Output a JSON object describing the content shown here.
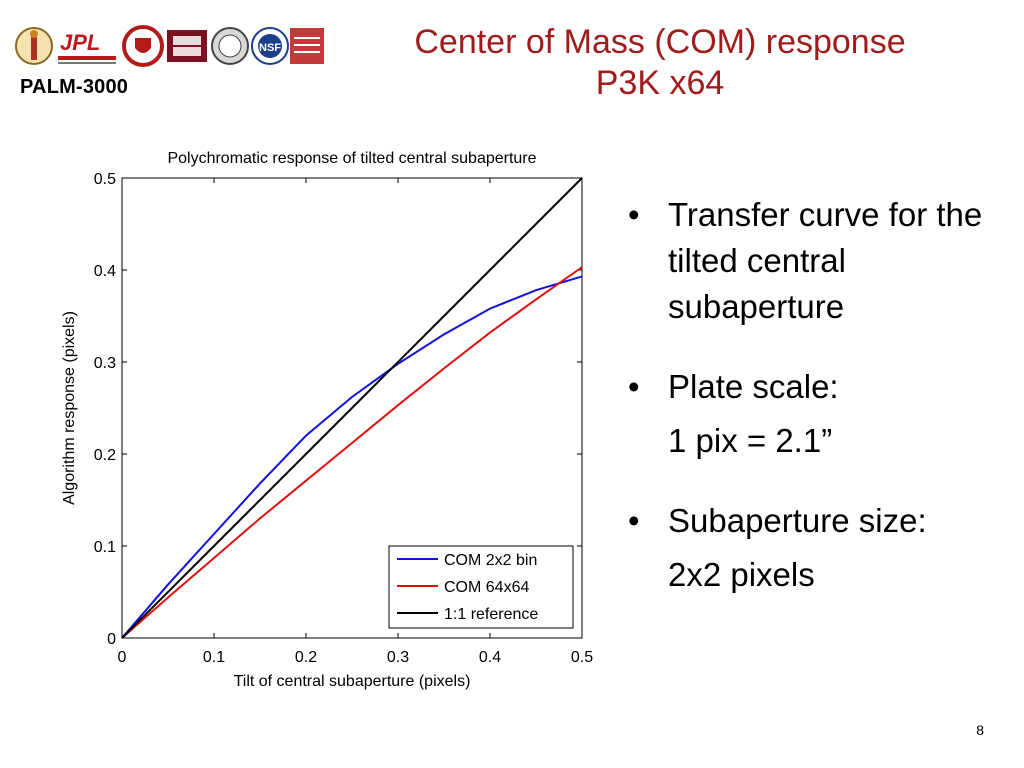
{
  "header": {
    "title_line1": "Center of Mass (COM) response",
    "title_line2": "P3K x64",
    "project_label": "PALM-3000",
    "logos": [
      "caltech-seal-logo",
      "jpl-logo",
      "cornell-seal-logo",
      "university-seal-logo",
      "oxford-seal-logo",
      "nsf-logo",
      "amnh-logo",
      "flag-logo"
    ]
  },
  "bullets": [
    {
      "text": "Transfer curve for the tilted central subaperture",
      "sub": ""
    },
    {
      "text": "Plate scale:",
      "sub": "1 pix = 2.1”"
    },
    {
      "text": "Subaperture size:",
      "sub": "2x2 pixels"
    }
  ],
  "page_number": "8",
  "colors": {
    "title": "#a01c1c",
    "series_blue": "#1010e0",
    "series_red": "#e01010",
    "series_black": "#000000"
  },
  "chart_data": {
    "type": "line",
    "title": "Polychromatic response of tilted central subaperture",
    "xlabel": "Tilt of central subaperture (pixels)",
    "ylabel": "Algorithm response (pixels)",
    "xlim": [
      0,
      0.5
    ],
    "ylim": [
      0,
      0.5
    ],
    "xticks": [
      "0",
      "0.1",
      "0.2",
      "0.3",
      "0.4",
      "0.5"
    ],
    "yticks": [
      "0",
      "0.1",
      "0.2",
      "0.3",
      "0.4",
      "0.5"
    ],
    "legend_position": "bottom-right",
    "grid": false,
    "series": [
      {
        "name": "COM 2x2 bin",
        "color": "#1010e0",
        "x": [
          0,
          0.05,
          0.1,
          0.15,
          0.2,
          0.25,
          0.3,
          0.35,
          0.4,
          0.45,
          0.5
        ],
        "y": [
          0,
          0.058,
          0.113,
          0.168,
          0.22,
          0.262,
          0.298,
          0.33,
          0.358,
          0.378,
          0.393
        ]
      },
      {
        "name": "COM 64x64",
        "color": "#e01010",
        "x": [
          0,
          0.05,
          0.1,
          0.15,
          0.2,
          0.25,
          0.3,
          0.35,
          0.4,
          0.45,
          0.5
        ],
        "y": [
          0,
          0.044,
          0.087,
          0.13,
          0.171,
          0.212,
          0.253,
          0.293,
          0.332,
          0.368,
          0.403
        ]
      },
      {
        "name": "1:1 reference",
        "color": "#000000",
        "x": [
          0,
          0.5
        ],
        "y": [
          0,
          0.5
        ]
      }
    ]
  }
}
